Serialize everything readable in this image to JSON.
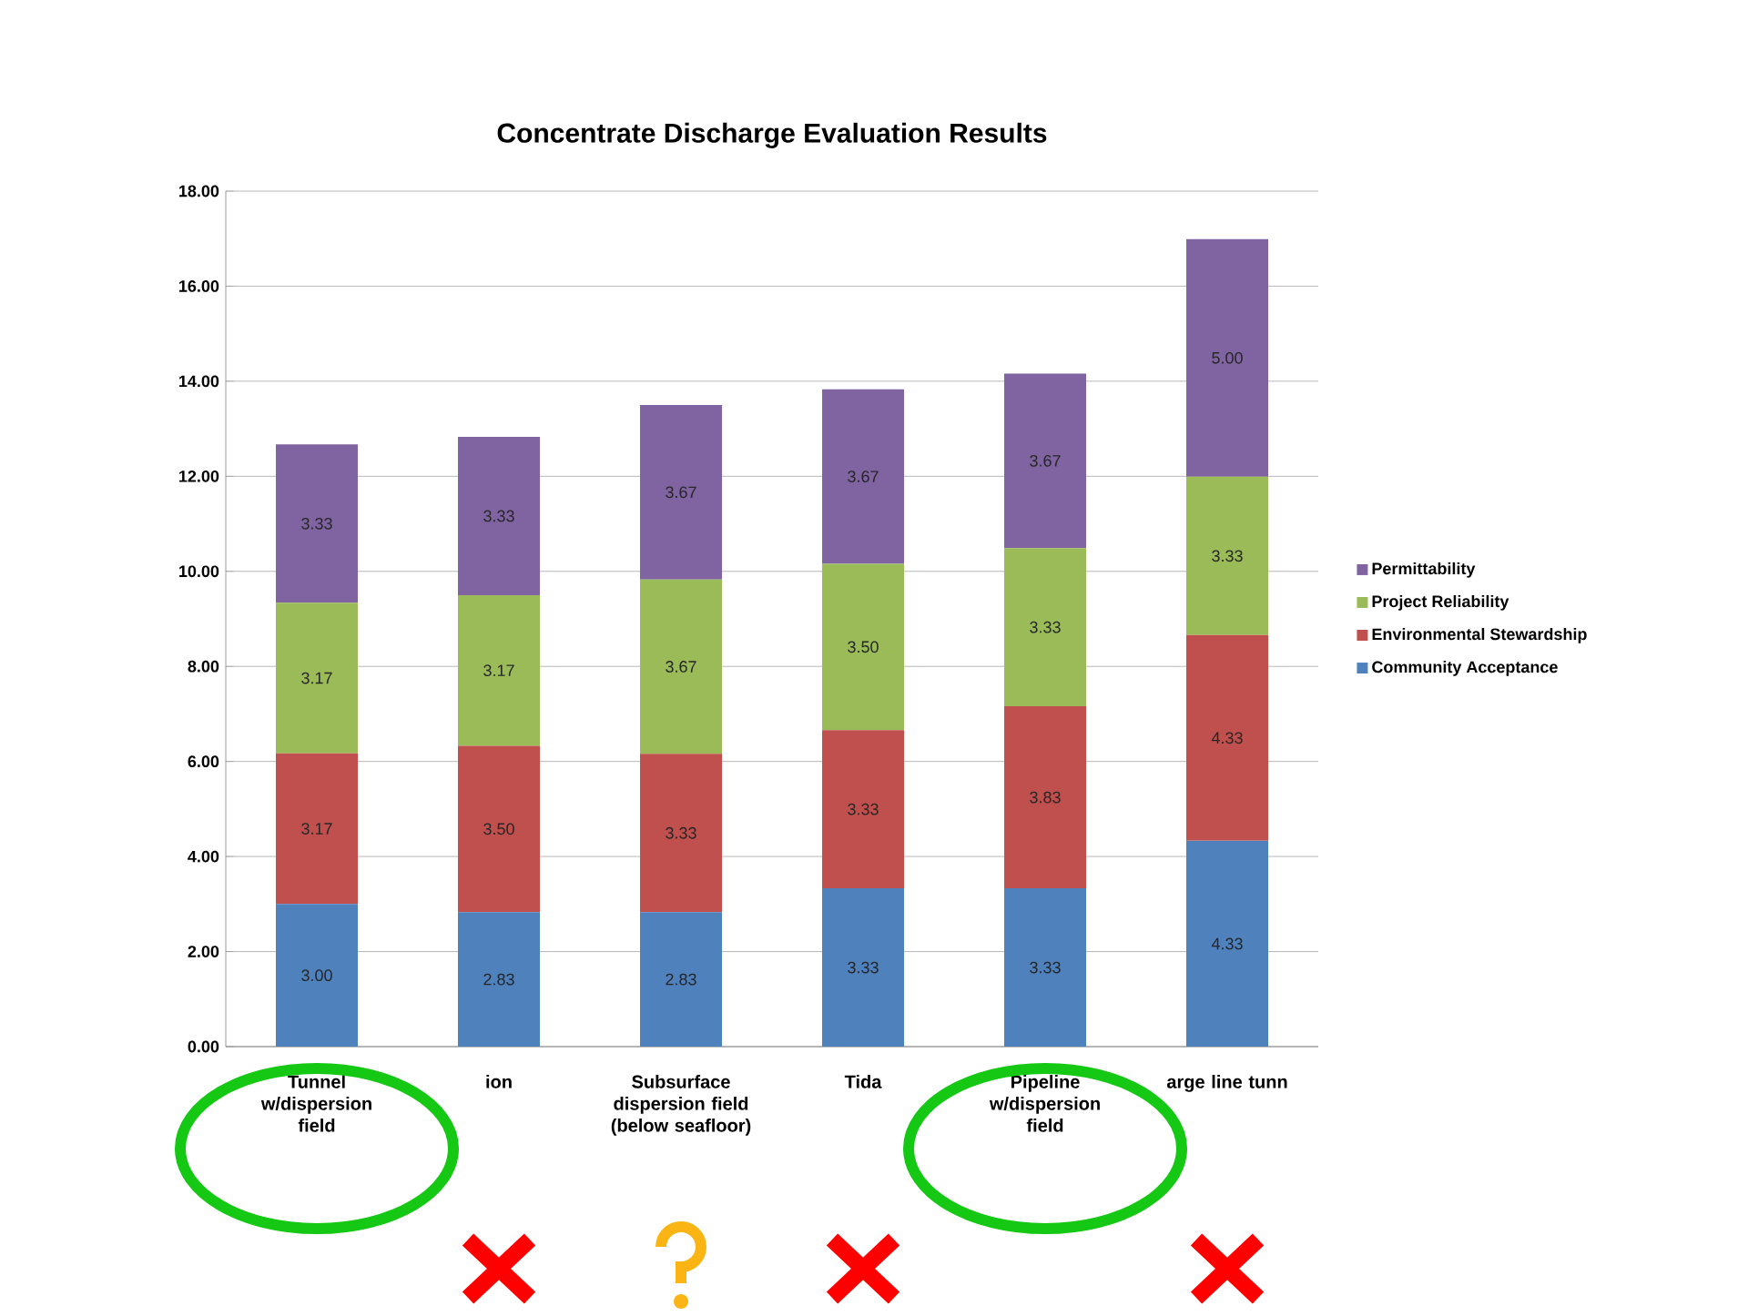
{
  "chart_data": {
    "type": "bar",
    "stacked": true,
    "title": "Concentrate Discharge Evaluation Results",
    "categories": [
      "Tunnel w/dispersion field",
      "ion",
      "Subsurface dispersion field (below seafloor)",
      "Tida",
      "Pipeline w/dispersion field",
      "arge line tunn"
    ],
    "series": [
      {
        "name": "Community Acceptance",
        "color": "#4f81bd",
        "values": [
          3.0,
          2.83,
          2.83,
          3.33,
          3.33,
          4.33
        ],
        "value_labels": [
          "3.00",
          "2.83",
          "2.83",
          "3.33",
          "3.33",
          "4.33"
        ]
      },
      {
        "name": "Environmental Stewardship",
        "color": "#c0504d",
        "values": [
          3.17,
          3.5,
          3.33,
          3.33,
          3.83,
          4.33
        ],
        "value_labels": [
          "3.17",
          "3.50",
          "3.33",
          "3.33",
          "3.83",
          "4.33"
        ]
      },
      {
        "name": "Project Reliability",
        "color": "#9bbb59",
        "values": [
          3.17,
          3.17,
          3.67,
          3.5,
          3.33,
          3.33
        ],
        "value_labels": [
          "3.17",
          "3.17",
          "3.67",
          "3.50",
          "3.33",
          "3.33"
        ]
      },
      {
        "name": "Permittability",
        "color": "#8064a2",
        "values": [
          3.33,
          3.33,
          3.67,
          3.67,
          3.67,
          5.0
        ],
        "value_labels": [
          "3.33",
          "3.33",
          "3.67",
          "3.67",
          "3.67",
          "5.00"
        ]
      }
    ],
    "ylim": [
      0,
      18
    ],
    "yticks": [
      {
        "value": 0,
        "label": "0.00"
      },
      {
        "value": 2,
        "label": "2.00"
      },
      {
        "value": 4,
        "label": "4.00"
      },
      {
        "value": 6,
        "label": "6.00"
      },
      {
        "value": 8,
        "label": "8.00"
      },
      {
        "value": 10,
        "label": "10.00"
      },
      {
        "value": 12,
        "label": "12.00"
      },
      {
        "value": 14,
        "label": "14.00"
      },
      {
        "value": 16,
        "label": "16.00"
      },
      {
        "value": 18,
        "label": "18.00"
      }
    ],
    "grid": "y",
    "legend": "right"
  }
}
